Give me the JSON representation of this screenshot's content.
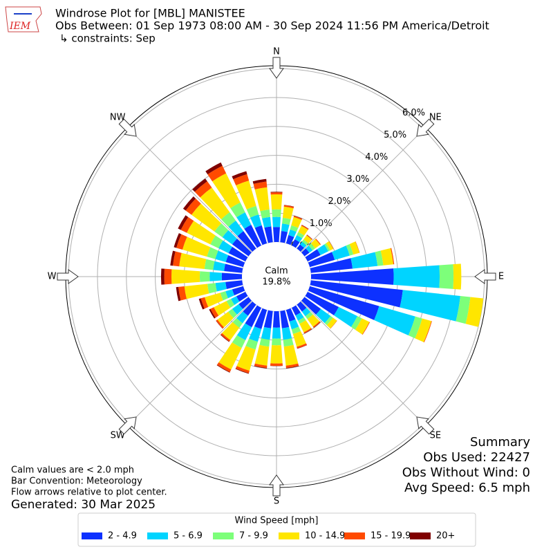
{
  "chart_data": {
    "type": "windrose",
    "title": "Windrose Plot for [MBL] MANISTEE",
    "subtitle": "Obs Between: 01 Sep 1973 08:00 AM - 30 Sep 2024 11:56 PM America/Detroit",
    "constraints": "↳ constraints: Sep",
    "logo_text": "IEM",
    "x": [
      0,
      10,
      20,
      30,
      40,
      50,
      60,
      70,
      80,
      90,
      100,
      110,
      120,
      130,
      140,
      150,
      160,
      170,
      180,
      190,
      200,
      210,
      220,
      230,
      240,
      250,
      260,
      270,
      280,
      290,
      300,
      310,
      320,
      330,
      340,
      350
    ],
    "xticks": [
      {
        "value": 0,
        "label": "N"
      },
      {
        "value": 45,
        "label": "NE"
      },
      {
        "value": 90,
        "label": "E"
      },
      {
        "value": 135,
        "label": "SE"
      },
      {
        "value": 180,
        "label": "S"
      },
      {
        "value": 225,
        "label": "SW"
      },
      {
        "value": 270,
        "label": "W"
      },
      {
        "value": 315,
        "label": "NW"
      }
    ],
    "rlim": [
      0,
      6.1
    ],
    "rticks": [
      {
        "value": 0,
        "label": "0.0%"
      },
      {
        "value": 1,
        "label": "1.0%"
      },
      {
        "value": 2,
        "label": "2.0%"
      },
      {
        "value": 3,
        "label": "3.0%"
      },
      {
        "value": 4,
        "label": "4.0%"
      },
      {
        "value": 5,
        "label": "5.0%"
      },
      {
        "value": 6,
        "label": "6.0%"
      }
    ],
    "grid": true,
    "calm_label": "Calm",
    "calm_value": 19.8,
    "calm_value_label": "19.8%",
    "legend_title": "Wind Speed [mph]",
    "series": [
      {
        "name": "2 - 4.9",
        "color": "#0d31ff",
        "values": [
          0.52,
          0.39,
          0.3,
          0.24,
          0.18,
          0.21,
          0.5,
          0.9,
          1.45,
          2.86,
          3.2,
          2.5,
          1.2,
          0.7,
          0.3,
          0.3,
          0.42,
          0.6,
          0.57,
          0.6,
          0.69,
          0.75,
          0.48,
          0.42,
          0.35,
          0.4,
          0.58,
          0.7,
          0.63,
          0.63,
          0.65,
          0.7,
          0.75,
          0.8,
          0.65,
          0.55
        ]
      },
      {
        "name": "5 - 6.9",
        "color": "#00d4ff",
        "values": [
          0.35,
          0.26,
          0.2,
          0.16,
          0.12,
          0.14,
          0.3,
          0.54,
          0.87,
          1.59,
          2.0,
          1.3,
          0.72,
          0.42,
          0.2,
          0.2,
          0.28,
          0.4,
          0.38,
          0.4,
          0.46,
          0.5,
          0.32,
          0.28,
          0.21,
          0.24,
          0.35,
          0.42,
          0.38,
          0.38,
          0.39,
          0.42,
          0.45,
          0.48,
          0.39,
          0.33
        ]
      },
      {
        "name": "7 - 9.9",
        "color": "#7dff7a",
        "values": [
          0.26,
          0.2,
          0.15,
          0.12,
          0.09,
          0.11,
          0.07,
          0.13,
          0.2,
          0.48,
          0.35,
          0.25,
          0.17,
          0.1,
          0.12,
          0.12,
          0.17,
          0.24,
          0.23,
          0.24,
          0.28,
          0.3,
          0.19,
          0.17,
          0.17,
          0.19,
          0.28,
          0.34,
          0.3,
          0.3,
          0.31,
          0.34,
          0.36,
          0.38,
          0.31,
          0.26
        ]
      },
      {
        "name": "10 - 14.9",
        "color": "#ffe600",
        "values": [
          0.52,
          0.39,
          0.3,
          0.24,
          0.18,
          0.21,
          0.12,
          0.22,
          0.35,
          0.27,
          0.45,
          0.33,
          0.29,
          0.17,
          0.33,
          0.33,
          0.46,
          0.66,
          0.63,
          0.66,
          0.76,
          0.83,
          0.53,
          0.46,
          0.49,
          0.56,
          0.8,
          0.98,
          0.88,
          0.88,
          0.91,
          0.98,
          1.05,
          1.12,
          0.91,
          0.77
        ]
      },
      {
        "name": "15 - 19.9",
        "color": "#ff4a00",
        "values": [
          0.07,
          0.05,
          0.04,
          0.03,
          0.02,
          0.03,
          0.01,
          0.01,
          0.03,
          0,
          0,
          0.02,
          0.02,
          0.01,
          0.04,
          0.04,
          0.06,
          0.08,
          0.08,
          0.08,
          0.09,
          0.1,
          0.06,
          0.06,
          0.13,
          0.14,
          0.21,
          0.25,
          0.22,
          0.22,
          0.23,
          0.25,
          0.27,
          0.29,
          0.23,
          0.2
        ]
      },
      {
        "name": "20+",
        "color": "#7f0000",
        "values": [
          0.02,
          0.01,
          0.01,
          0.01,
          0.01,
          0,
          0,
          0,
          0,
          0,
          0,
          0,
          0,
          0,
          0.01,
          0.01,
          0.01,
          0.02,
          0.01,
          0.02,
          0.02,
          0.02,
          0.02,
          0.01,
          0.05,
          0.07,
          0.08,
          0.11,
          0.09,
          0.09,
          0.11,
          0.11,
          0.12,
          0.13,
          0.11,
          0.09
        ]
      }
    ],
    "footnotes": [
      "Calm values are < 2.0 mph",
      "Bar Convention: Meteorology",
      "Flow arrows relative to plot center."
    ],
    "generated": "Generated: 30 Mar 2025",
    "summary": [
      "Summary",
      "Obs Used: 22427",
      "Obs Without Wind: 0",
      "Avg Speed: 6.5 mph"
    ]
  }
}
